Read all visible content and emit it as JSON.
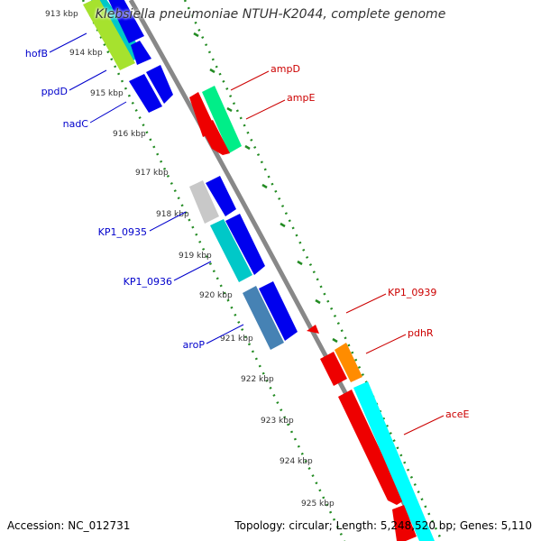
{
  "title": "Klebsiella pneumoniae NTUH-K2044, complete genome",
  "footer": {
    "accession": "Accession: NC_012731",
    "topology": "Topology: circular; Length: 5,248,520 bp; Genes: 5,110"
  },
  "ticks": [
    "913 kbp",
    "914 kbp",
    "915 kbp",
    "916 kbp",
    "917 kbp",
    "918 kbp",
    "919 kbp",
    "920 kbp",
    "921 kbp",
    "922 kbp",
    "923 kbp",
    "924 kbp",
    "925 kbp"
  ],
  "gene_labels": {
    "left": [
      "hofB",
      "ppdD",
      "nadC",
      "KP1_0935",
      "KP1_0936",
      "aroP"
    ],
    "right": [
      "ampD",
      "ampE",
      "KP1_0939",
      "pdhR",
      "aceE"
    ]
  },
  "colors": {
    "forward_strand": "#0000ee",
    "reverse_strand": "#ee0000",
    "backbone": "#888888",
    "tick_dots": "#228b22",
    "label_left": "#0000cc",
    "label_right": "#cc0000"
  }
}
